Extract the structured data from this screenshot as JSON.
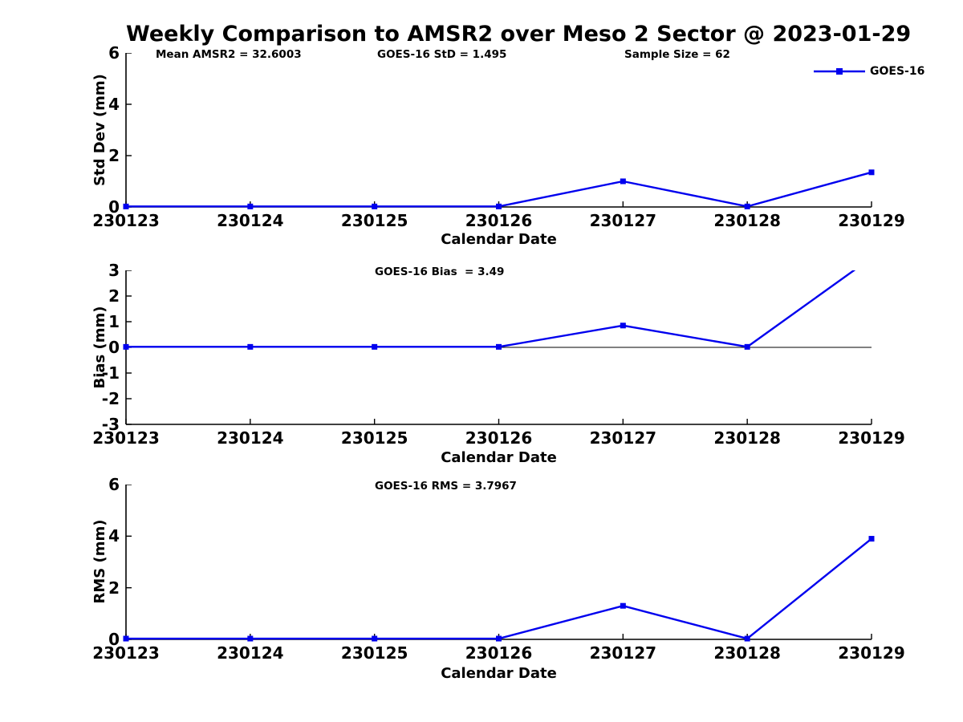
{
  "figure": {
    "title": "Weekly Comparison to AMSR2 over Meso 2 Sector @ 2023-01-29",
    "line_color": "#0000EE",
    "axis_color": "#000000",
    "background": "#FFFFFF",
    "legend": {
      "label": "GOES-16",
      "position": "top-right"
    }
  },
  "chart_data": [
    {
      "type": "line",
      "id": "stddev",
      "annotations": [
        "Mean AMSR2 = 32.6003",
        "GOES-16 StD = 1.495",
        "Sample Size = 62"
      ],
      "xlabel": "Calendar Date",
      "ylabel": "Std Dev (mm)",
      "x": [
        "230123",
        "230124",
        "230125",
        "230126",
        "230127",
        "230128",
        "230129"
      ],
      "ylim": [
        0,
        6
      ],
      "yticks": [
        0,
        2,
        4,
        6
      ],
      "grid": false,
      "zero_line": false,
      "series": [
        {
          "name": "GOES-16",
          "values": [
            0.02,
            0.02,
            0.02,
            0.02,
            1.0,
            0.02,
            1.35
          ]
        }
      ]
    },
    {
      "type": "line",
      "id": "bias",
      "annotations": [
        "GOES-16 Bias  = 3.49"
      ],
      "xlabel": "Calendar Date",
      "ylabel": "Bias (mm)",
      "x": [
        "230123",
        "230124",
        "230125",
        "230126",
        "230127",
        "230128",
        "230129"
      ],
      "ylim": [
        -3,
        3
      ],
      "yticks": [
        -3,
        -2,
        -1,
        0,
        1,
        2,
        3
      ],
      "grid": false,
      "zero_line": true,
      "series": [
        {
          "name": "GOES-16",
          "values": [
            0.02,
            0.02,
            0.02,
            0.02,
            0.85,
            0.02,
            3.49
          ]
        }
      ]
    },
    {
      "type": "line",
      "id": "rms",
      "annotations": [
        "GOES-16 RMS = 3.7967"
      ],
      "xlabel": "Calendar Date",
      "ylabel": "RMS (mm)",
      "x": [
        "230123",
        "230124",
        "230125",
        "230126",
        "230127",
        "230128",
        "230129"
      ],
      "ylim": [
        0,
        6
      ],
      "yticks": [
        0,
        2,
        4,
        6
      ],
      "grid": false,
      "zero_line": false,
      "series": [
        {
          "name": "GOES-16",
          "values": [
            0.03,
            0.03,
            0.03,
            0.03,
            1.3,
            0.03,
            3.9
          ]
        }
      ]
    }
  ]
}
